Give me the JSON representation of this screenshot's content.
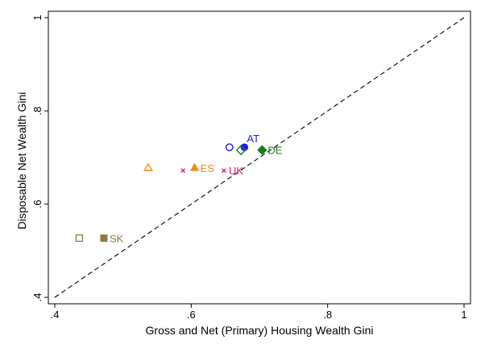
{
  "chart_data": {
    "type": "scatter",
    "title": "",
    "xlabel": "Gross and Net (Primary) Housing Wealth Gini",
    "ylabel": "Disposable Net Wealth Gini",
    "xlim": [
      0.4,
      1.0
    ],
    "ylim": [
      0.4,
      1.0
    ],
    "xticks": [
      {
        "value": 0.4,
        "label": ".4"
      },
      {
        "value": 0.6,
        "label": ".6"
      },
      {
        "value": 0.8,
        "label": ".8"
      },
      {
        "value": 1.0,
        "label": "1"
      }
    ],
    "yticks": [
      {
        "value": 0.4,
        "label": ".4"
      },
      {
        "value": 0.6,
        "label": ".6"
      },
      {
        "value": 0.8,
        "label": ".8"
      },
      {
        "value": 1.0,
        "label": "1"
      }
    ],
    "grid": false,
    "reference_line": {
      "type": "45-degree",
      "from": [
        0.4,
        0.4
      ],
      "to": [
        1.0,
        1.0
      ],
      "style": "dashed"
    },
    "series": [
      {
        "name": "AT",
        "color": "#1a1aff",
        "gross": {
          "x": 0.656,
          "y": 0.722,
          "marker": "circle-open"
        },
        "net": {
          "x": 0.678,
          "y": 0.722,
          "marker": "circle-filled"
        },
        "label": "AT"
      },
      {
        "name": "DE",
        "color": "#1a7a1a",
        "gross": {
          "x": 0.673,
          "y": 0.716,
          "marker": "diamond-open"
        },
        "net": {
          "x": 0.704,
          "y": 0.716,
          "marker": "diamond-filled"
        },
        "label": "DE"
      },
      {
        "name": "ES",
        "color": "#f28c1a",
        "gross": {
          "x": 0.537,
          "y": 0.678,
          "marker": "triangle-open"
        },
        "net": {
          "x": 0.605,
          "y": 0.678,
          "marker": "triangle-filled"
        },
        "label": "ES"
      },
      {
        "name": "UK",
        "color": "#e0197a",
        "gross": {
          "x": 0.588,
          "y": 0.672,
          "marker": "x-small"
        },
        "net": {
          "x": 0.648,
          "y": 0.672,
          "marker": "x-small"
        },
        "label": "UK"
      },
      {
        "name": "SK",
        "color": "#8c7a40",
        "gross": {
          "x": 0.436,
          "y": 0.527,
          "marker": "square-open"
        },
        "net": {
          "x": 0.472,
          "y": 0.527,
          "marker": "square-filled"
        },
        "label": "SK"
      }
    ]
  }
}
